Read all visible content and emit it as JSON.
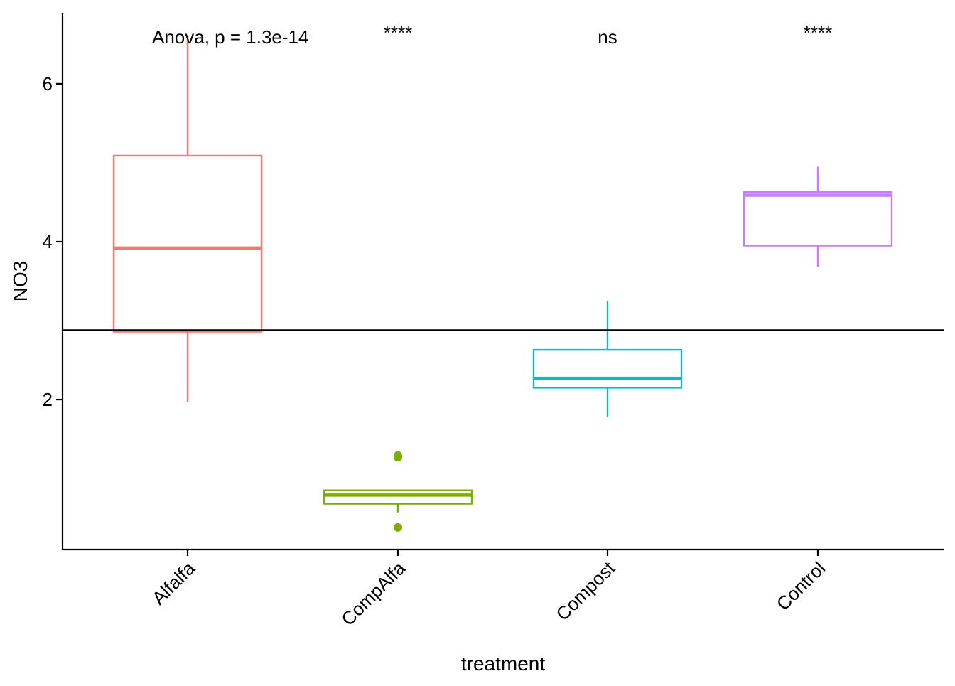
{
  "chart_data": {
    "type": "box",
    "xlabel": "treatment",
    "ylabel": "NO3",
    "ylim": [
      0.1,
      6.9
    ],
    "yticks": [
      2,
      4,
      6
    ],
    "categories": [
      "Alfalfa",
      "CompAlfa",
      "Compost",
      "Control"
    ],
    "boxes": [
      {
        "category": "Alfalfa",
        "whisker_low": 1.97,
        "q1": 2.86,
        "median": 3.92,
        "q3": 5.09,
        "whisker_high": 6.6,
        "outliers": [],
        "color": "#F8766D"
      },
      {
        "category": "CompAlfa",
        "whisker_low": 0.57,
        "q1": 0.68,
        "median": 0.79,
        "q3": 0.85,
        "whisker_high": 0.86,
        "outliers": [
          1.27,
          1.29,
          0.38
        ],
        "color": "#7CAE00"
      },
      {
        "category": "Compost",
        "whisker_low": 1.78,
        "q1": 2.15,
        "median": 2.27,
        "q3": 2.63,
        "whisker_high": 3.25,
        "outliers": [],
        "color": "#00BFC4"
      },
      {
        "category": "Control",
        "whisker_low": 3.68,
        "q1": 3.95,
        "median": 4.59,
        "q3": 4.63,
        "whisker_high": 4.95,
        "outliers": [],
        "color": "#C77CFF"
      }
    ],
    "reference_line": {
      "y": 2.88
    },
    "global_test_label": "Anova, p = 1.3e-14",
    "significance_labels": [
      "",
      "****",
      "ns",
      "****"
    ]
  }
}
